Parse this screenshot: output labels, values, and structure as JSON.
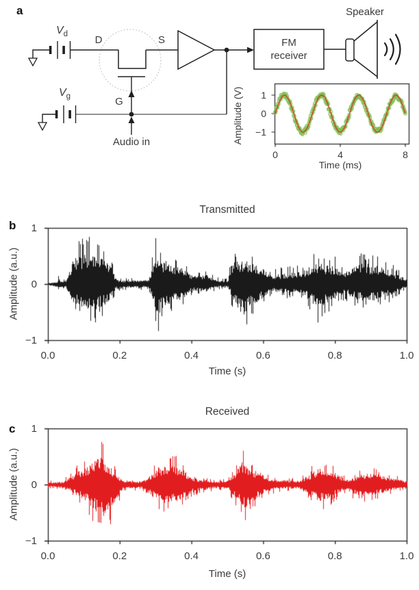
{
  "figure": {
    "panel_a": {
      "label": "a",
      "vd": {
        "main": "V",
        "sub": "d"
      },
      "vg": {
        "main": "V",
        "sub": "g"
      },
      "drain_label": "D",
      "source_label": "S",
      "gate_label": "G",
      "audio_in_label": "Audio in",
      "fm_receiver_line1": "FM",
      "fm_receiver_line2": "receiver",
      "speaker_label": "Speaker"
    },
    "panel_b": {
      "label": "b"
    },
    "panel_c": {
      "label": "c"
    }
  },
  "colors": {
    "circuit_line": "#221f1f",
    "gray_wire": "#6f6f6f",
    "dashed_circle": "#c9c9c9",
    "transmitted_trace": "#1a1a1a",
    "received_trace": "#e21d1f",
    "inset_marker_green": "#7dc252",
    "inset_fit_red": "#cd3a23",
    "axis": "#221f1f"
  },
  "chart_data": [
    {
      "id": "inset",
      "type": "line",
      "title": "",
      "xlabel": "Time (ms)",
      "ylabel": "Amplitude (V)",
      "xlim": [
        0,
        8
      ],
      "ylim": [
        -1.6,
        1.6
      ],
      "xticks": [
        "0",
        "4",
        "8"
      ],
      "yticks": [
        "1",
        "0",
        "−1"
      ],
      "legend": "none",
      "grid": false,
      "series": [
        {
          "name": "measured-audio",
          "style": "scatter-open-circles",
          "color": "#7dc252",
          "waveform": "sine",
          "amplitude": 1.0,
          "cycles_per_ms": 0.4375,
          "phase": 0,
          "noise": 0.12
        },
        {
          "name": "sine-fit",
          "style": "line",
          "color": "#cd3a23",
          "waveform": "sine",
          "amplitude": 1.0,
          "cycles_per_ms": 0.4375,
          "phase": 0
        }
      ]
    },
    {
      "id": "transmitted",
      "type": "area",
      "title": "Transmitted",
      "xlabel": "Time (s)",
      "ylabel": "Amplitude (a.u.)",
      "xlim": [
        0,
        1
      ],
      "ylim": [
        -1,
        1
      ],
      "xticks": [
        "0.0",
        "0.2",
        "0.4",
        "0.6",
        "0.8",
        "1.0"
      ],
      "yticks": [
        "1",
        "0",
        "−1"
      ],
      "grid": false,
      "color": "#1a1a1a",
      "seed": 7,
      "waveform": "speech-bursts",
      "envelope_pos": [
        [
          0,
          0.03
        ],
        [
          0.025,
          0.05
        ],
        [
          0.03,
          0.18
        ],
        [
          0.035,
          0.06
        ],
        [
          0.05,
          0.12
        ],
        [
          0.07,
          0.75
        ],
        [
          0.1,
          0.9
        ],
        [
          0.14,
          0.9
        ],
        [
          0.17,
          0.6
        ],
        [
          0.19,
          0.15
        ],
        [
          0.2,
          0.1
        ],
        [
          0.28,
          0.12
        ],
        [
          0.3,
          0.85
        ],
        [
          0.32,
          0.7
        ],
        [
          0.35,
          0.6
        ],
        [
          0.38,
          0.45
        ],
        [
          0.4,
          0.25
        ],
        [
          0.44,
          0.28
        ],
        [
          0.47,
          0.12
        ],
        [
          0.5,
          0.1
        ],
        [
          0.51,
          0.55
        ],
        [
          0.53,
          0.72
        ],
        [
          0.56,
          0.65
        ],
        [
          0.6,
          0.45
        ],
        [
          0.62,
          0.25
        ],
        [
          0.65,
          0.3
        ],
        [
          0.7,
          0.35
        ],
        [
          0.72,
          0.45
        ],
        [
          0.74,
          0.65
        ],
        [
          0.77,
          0.6
        ],
        [
          0.8,
          0.5
        ],
        [
          0.82,
          0.35
        ],
        [
          0.84,
          0.4
        ],
        [
          0.86,
          0.55
        ],
        [
          0.88,
          0.6
        ],
        [
          0.91,
          0.55
        ],
        [
          0.94,
          0.45
        ],
        [
          0.97,
          0.3
        ],
        [
          1,
          0.15
        ]
      ],
      "envelope_neg": [
        [
          0,
          0.03
        ],
        [
          0.03,
          0.1
        ],
        [
          0.05,
          0.1
        ],
        [
          0.07,
          0.55
        ],
        [
          0.1,
          0.7
        ],
        [
          0.13,
          0.75
        ],
        [
          0.17,
          0.55
        ],
        [
          0.19,
          0.12
        ],
        [
          0.28,
          0.1
        ],
        [
          0.305,
          0.9
        ],
        [
          0.33,
          0.6
        ],
        [
          0.36,
          0.5
        ],
        [
          0.38,
          0.4
        ],
        [
          0.4,
          0.2
        ],
        [
          0.44,
          0.22
        ],
        [
          0.47,
          0.1
        ],
        [
          0.5,
          0.08
        ],
        [
          0.52,
          0.6
        ],
        [
          0.545,
          0.95
        ],
        [
          0.57,
          0.6
        ],
        [
          0.6,
          0.4
        ],
        [
          0.62,
          0.2
        ],
        [
          0.65,
          0.25
        ],
        [
          0.7,
          0.3
        ],
        [
          0.72,
          0.4
        ],
        [
          0.755,
          0.8
        ],
        [
          0.78,
          0.55
        ],
        [
          0.8,
          0.45
        ],
        [
          0.82,
          0.3
        ],
        [
          0.84,
          0.35
        ],
        [
          0.87,
          0.5
        ],
        [
          0.9,
          0.5
        ],
        [
          0.93,
          0.4
        ],
        [
          0.96,
          0.3
        ],
        [
          1,
          0.12
        ]
      ]
    },
    {
      "id": "received",
      "type": "area",
      "title": "Received",
      "xlabel": "Time (s)",
      "ylabel": "Amplitude (a.u.)",
      "xlim": [
        0,
        1
      ],
      "ylim": [
        -1,
        1
      ],
      "xticks": [
        "0.0",
        "0.2",
        "0.4",
        "0.6",
        "0.8",
        "1.0"
      ],
      "yticks": [
        "1",
        "0",
        "−1"
      ],
      "grid": false,
      "color": "#e21d1f",
      "seed": 13,
      "waveform": "speech-bursts",
      "envelope_pos": [
        [
          0,
          0.07
        ],
        [
          0.04,
          0.08
        ],
        [
          0.06,
          0.2
        ],
        [
          0.08,
          0.35
        ],
        [
          0.1,
          0.5
        ],
        [
          0.12,
          0.6
        ],
        [
          0.135,
          0.85
        ],
        [
          0.15,
          0.8
        ],
        [
          0.17,
          0.6
        ],
        [
          0.19,
          0.3
        ],
        [
          0.21,
          0.1
        ],
        [
          0.26,
          0.09
        ],
        [
          0.29,
          0.3
        ],
        [
          0.31,
          0.55
        ],
        [
          0.33,
          0.5
        ],
        [
          0.36,
          0.55
        ],
        [
          0.38,
          0.4
        ],
        [
          0.4,
          0.2
        ],
        [
          0.43,
          0.15
        ],
        [
          0.47,
          0.1
        ],
        [
          0.5,
          0.12
        ],
        [
          0.52,
          0.35
        ],
        [
          0.54,
          0.72
        ],
        [
          0.56,
          0.5
        ],
        [
          0.58,
          0.4
        ],
        [
          0.6,
          0.3
        ],
        [
          0.62,
          0.15
        ],
        [
          0.67,
          0.12
        ],
        [
          0.7,
          0.12
        ],
        [
          0.73,
          0.3
        ],
        [
          0.755,
          0.5
        ],
        [
          0.78,
          0.4
        ],
        [
          0.8,
          0.35
        ],
        [
          0.82,
          0.2
        ],
        [
          0.84,
          0.15
        ],
        [
          0.87,
          0.3
        ],
        [
          0.89,
          0.35
        ],
        [
          0.92,
          0.3
        ],
        [
          0.95,
          0.2
        ],
        [
          1,
          0.1
        ]
      ],
      "envelope_neg": [
        [
          0,
          0.07
        ],
        [
          0.04,
          0.08
        ],
        [
          0.07,
          0.25
        ],
        [
          0.09,
          0.4
        ],
        [
          0.11,
          0.55
        ],
        [
          0.13,
          0.75
        ],
        [
          0.15,
          0.95
        ],
        [
          0.17,
          0.8
        ],
        [
          0.19,
          0.45
        ],
        [
          0.21,
          0.12
        ],
        [
          0.26,
          0.1
        ],
        [
          0.29,
          0.35
        ],
        [
          0.315,
          0.6
        ],
        [
          0.34,
          0.55
        ],
        [
          0.37,
          0.5
        ],
        [
          0.39,
          0.3
        ],
        [
          0.41,
          0.2
        ],
        [
          0.44,
          0.15
        ],
        [
          0.47,
          0.1
        ],
        [
          0.5,
          0.1
        ],
        [
          0.52,
          0.4
        ],
        [
          0.55,
          0.7
        ],
        [
          0.57,
          0.5
        ],
        [
          0.59,
          0.35
        ],
        [
          0.61,
          0.2
        ],
        [
          0.65,
          0.12
        ],
        [
          0.7,
          0.12
        ],
        [
          0.73,
          0.35
        ],
        [
          0.76,
          0.5
        ],
        [
          0.78,
          0.45
        ],
        [
          0.8,
          0.3
        ],
        [
          0.83,
          0.15
        ],
        [
          0.86,
          0.3
        ],
        [
          0.89,
          0.35
        ],
        [
          0.92,
          0.28
        ],
        [
          0.95,
          0.18
        ],
        [
          1,
          0.08
        ]
      ]
    }
  ]
}
